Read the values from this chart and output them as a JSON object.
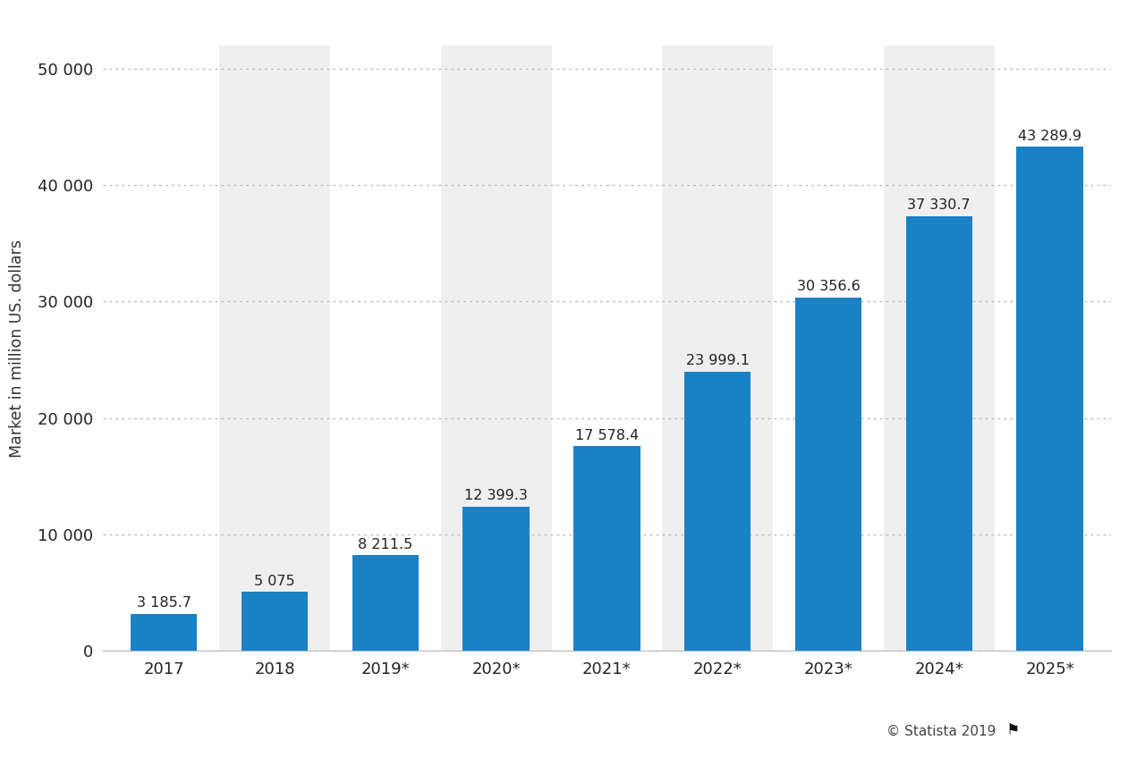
{
  "categories": [
    "2017",
    "2018",
    "2019*",
    "2020*",
    "2021*",
    "2022*",
    "2023*",
    "2024*",
    "2025*"
  ],
  "values": [
    3185.7,
    5075.0,
    8211.5,
    12399.3,
    17578.4,
    23999.1,
    30356.6,
    37330.7,
    43289.9
  ],
  "bar_color": "#1a82c4",
  "background_color": "#ffffff",
  "plot_bg_color": "#ffffff",
  "stripe_color": "#efefef",
  "ylabel": "Market in million US. dollars",
  "ylim": [
    0,
    52000
  ],
  "yticks": [
    0,
    10000,
    20000,
    30000,
    40000,
    50000
  ],
  "grid_color": "#bbbbbb",
  "value_labels": [
    "3 185.7",
    "5 075",
    "8 211.5",
    "12 399.3",
    "17 578.4",
    "23 999.1",
    "30 356.6",
    "37 330.7",
    "43 289.9"
  ],
  "ytick_labels": [
    "0",
    "10 000",
    "20 000",
    "30 000",
    "40 000",
    "50 000"
  ],
  "source_text": "© Statista 2019",
  "label_fontsize": 11.5,
  "tick_fontsize": 13,
  "ylabel_fontsize": 12.5
}
